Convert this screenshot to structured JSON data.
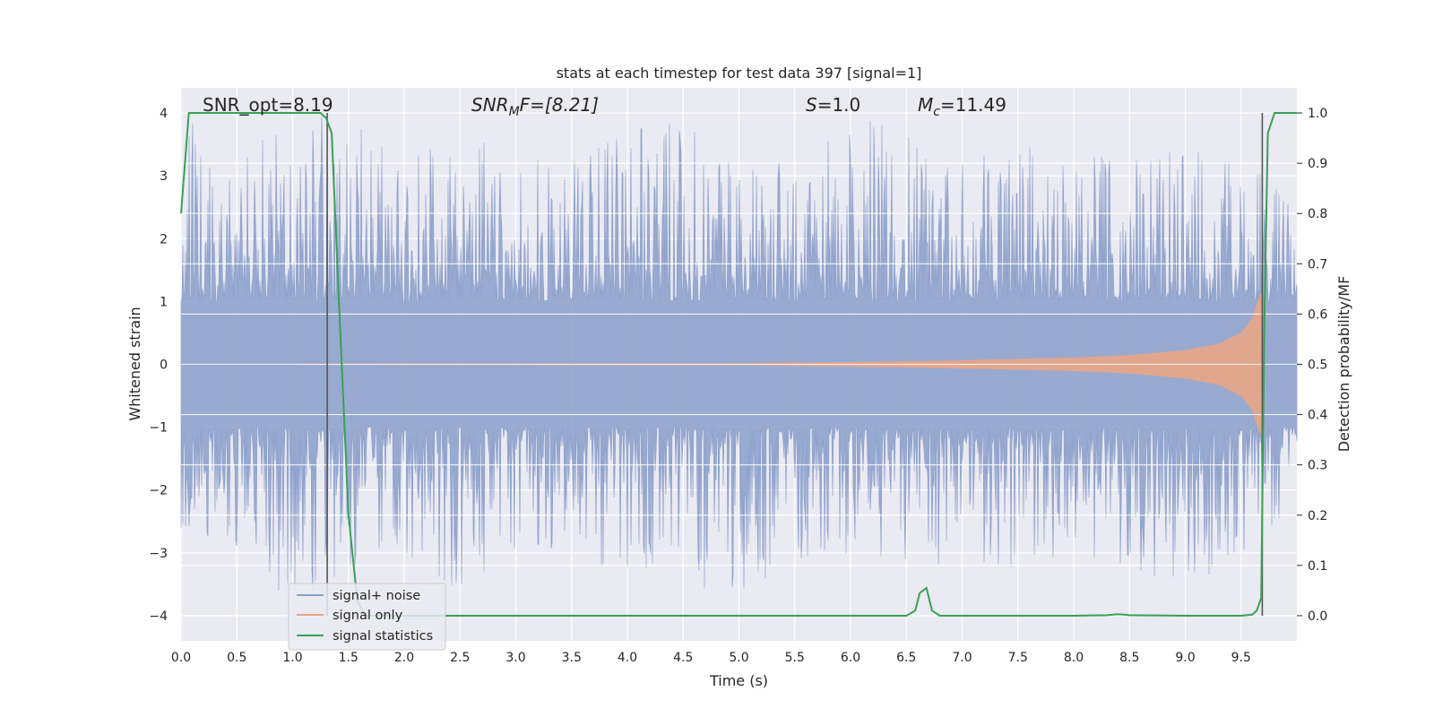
{
  "chart_data": {
    "type": "line",
    "title": "stats at each timestep for test data 397 [signal=1]",
    "xlabel": "Time (s)",
    "ylabel": "Whitened strain",
    "ylabel_right": "Detection probability/MF",
    "xlim": [
      0.0,
      10.0
    ],
    "ylim": [
      -4.4,
      4.4
    ],
    "ylim_right": [
      -0.05,
      1.05
    ],
    "x_ticks": [
      0.0,
      0.5,
      1.0,
      1.5,
      2.0,
      2.5,
      3.0,
      3.5,
      4.0,
      4.5,
      5.0,
      5.5,
      6.0,
      6.5,
      7.0,
      7.5,
      8.0,
      8.5,
      9.0,
      9.5
    ],
    "x_tick_labels": [
      "0.0",
      "0.5",
      "1.0",
      "1.5",
      "2.0",
      "2.5",
      "3.0",
      "3.5",
      "4.0",
      "4.5",
      "5.0",
      "5.5",
      "6.0",
      "6.5",
      "7.0",
      "7.5",
      "8.0",
      "8.5",
      "9.0",
      "9.5"
    ],
    "y_ticks": [
      -4,
      -3,
      -2,
      -1,
      0,
      1,
      2,
      3,
      4
    ],
    "y_tick_labels": [
      "−4",
      "−3",
      "−2",
      "−1",
      "0",
      "1",
      "2",
      "3",
      "4"
    ],
    "y_ticks_right": [
      0.0,
      0.1,
      0.2,
      0.3,
      0.4,
      0.5,
      0.6,
      0.7,
      0.8,
      0.9,
      1.0
    ],
    "y_tick_labels_right": [
      "0.0",
      "0.1",
      "0.2",
      "0.3",
      "0.4",
      "0.5",
      "0.6",
      "0.7",
      "0.8",
      "0.9",
      "1.0"
    ],
    "grid": true,
    "legend_position": "lower-left",
    "annotations": {
      "snr_opt": "SNR_opt=8.19",
      "snr_mf_base": "SNR",
      "snr_mf_sub": "M",
      "snr_mf_rest": "F=[8.21]",
      "s_sym": "S",
      "s_rest": "=1.0",
      "mc_sym": "M",
      "mc_sub": "c",
      "mc_rest": "=11.49"
    },
    "vlines_x": [
      1.31,
      9.69
    ],
    "series": [
      {
        "name": "signal+ noise",
        "color": "#8da0cb",
        "axis": "left",
        "noise_envelope": {
          "t": [
            0.0,
            0.5,
            1.0,
            1.5,
            2.0,
            2.5,
            3.0,
            3.5,
            4.0,
            4.5,
            5.0,
            5.5,
            6.0,
            6.5,
            7.0,
            7.5,
            8.0,
            8.5,
            9.0,
            9.5,
            10.0
          ],
          "pos_max": [
            4.0,
            3.2,
            4.0,
            3.9,
            3.2,
            3.7,
            3.3,
            3.2,
            3.7,
            3.9,
            3.2,
            3.2,
            3.8,
            4.0,
            3.2,
            3.5,
            3.3,
            3.3,
            3.4,
            3.3,
            2.5
          ],
          "neg_min": [
            -2.6,
            -3.3,
            -3.7,
            -3.4,
            -3.0,
            -3.6,
            -2.9,
            -3.1,
            -3.4,
            -3.3,
            -4.0,
            -3.1,
            -3.0,
            -3.1,
            -3.4,
            -3.2,
            -3.0,
            -3.2,
            -3.6,
            -3.0,
            -2.2
          ]
        }
      },
      {
        "name": "signal only",
        "color": "#e5a58a",
        "axis": "left",
        "chirp_amplitude": {
          "t": [
            0.0,
            5.0,
            6.0,
            7.0,
            8.0,
            8.5,
            9.0,
            9.3,
            9.5,
            9.6,
            9.65,
            9.68
          ],
          "amp": [
            0.0,
            0.01,
            0.03,
            0.06,
            0.1,
            0.14,
            0.22,
            0.32,
            0.5,
            0.72,
            1.0,
            1.12
          ]
        }
      },
      {
        "name": "signal statistics",
        "color": "#3aa055",
        "axis": "right",
        "x": [
          0.0,
          0.07,
          0.15,
          0.5,
          1.0,
          1.25,
          1.3,
          1.35,
          1.42,
          1.5,
          1.58,
          1.65,
          2.0,
          3.0,
          4.0,
          5.0,
          6.0,
          6.5,
          6.58,
          6.62,
          6.68,
          6.73,
          6.8,
          7.5,
          8.0,
          8.3,
          8.4,
          8.5,
          9.0,
          9.5,
          9.6,
          9.64,
          9.68,
          9.71,
          9.74,
          9.8,
          9.85,
          10.0
        ],
        "y": [
          0.8,
          1.0,
          1.0,
          1.0,
          1.0,
          1.0,
          0.99,
          0.96,
          0.6,
          0.2,
          0.03,
          0.0,
          0.0,
          0.0,
          0.0,
          0.0,
          0.0,
          0.0,
          0.01,
          0.045,
          0.055,
          0.01,
          0.0,
          0.0,
          0.0,
          0.001,
          0.003,
          0.001,
          0.0,
          0.0,
          0.002,
          0.01,
          0.035,
          0.6,
          0.96,
          1.0,
          1.0,
          1.0
        ]
      }
    ]
  }
}
